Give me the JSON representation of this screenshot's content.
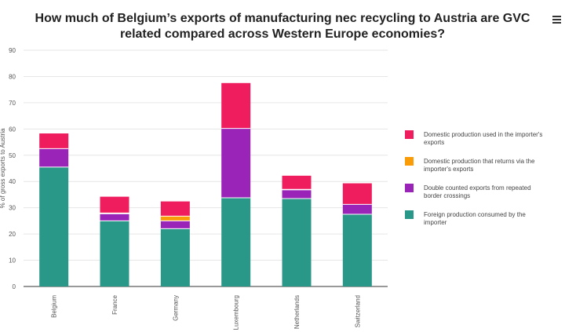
{
  "title": "How much of Belgium’s exports of manufacturing nec recycling to Austria are GVC related compared across Western Europe economies?",
  "menu_icon": "hamburger-menu-icon",
  "chart_data": {
    "type": "bar",
    "stacked": true,
    "title": "How much of Belgium’s exports of manufacturing nec recycling to Austria are GVC related compared across Western Europe economies?",
    "xlabel": "",
    "ylabel": "% of gross exports to Austria",
    "ylim": [
      0,
      90
    ],
    "yticks": [
      0,
      10,
      20,
      30,
      40,
      50,
      60,
      70,
      80,
      90
    ],
    "grid": true,
    "legend_position": "right",
    "categories": [
      "Belgium",
      "France",
      "Germany",
      "Luxembourg",
      "Netherlands",
      "Switzerland"
    ],
    "series": [
      {
        "name": "Foreign production consumed by the importer",
        "color": "#2a9888",
        "values": [
          45.5,
          25.0,
          22.0,
          33.8,
          33.5,
          27.5
        ]
      },
      {
        "name": "Double counted exports from repeated border crossings",
        "color": "#9b24b8",
        "values": [
          7.0,
          2.7,
          3.0,
          26.4,
          3.3,
          3.8
        ]
      },
      {
        "name": "Domestic production that returns via the importer's exports",
        "color": "#fa9c08",
        "values": [
          0.0,
          0.3,
          1.8,
          0.0,
          0.2,
          0.0
        ]
      },
      {
        "name": "Domestic production used in the importer's exports",
        "color": "#ef1d5e",
        "values": [
          5.8,
          6.2,
          5.6,
          17.3,
          5.2,
          8.0
        ]
      }
    ]
  },
  "legend_items": [
    {
      "label": "Domestic production used in the importer's exports",
      "color": "#ef1d5e"
    },
    {
      "label": "Domestic production that returns via the importer's exports",
      "color": "#fa9c08"
    },
    {
      "label": "Double counted exports from repeated border crossings",
      "color": "#9b24b8"
    },
    {
      "label": "Foreign production consumed by the importer",
      "color": "#2a9888"
    }
  ]
}
